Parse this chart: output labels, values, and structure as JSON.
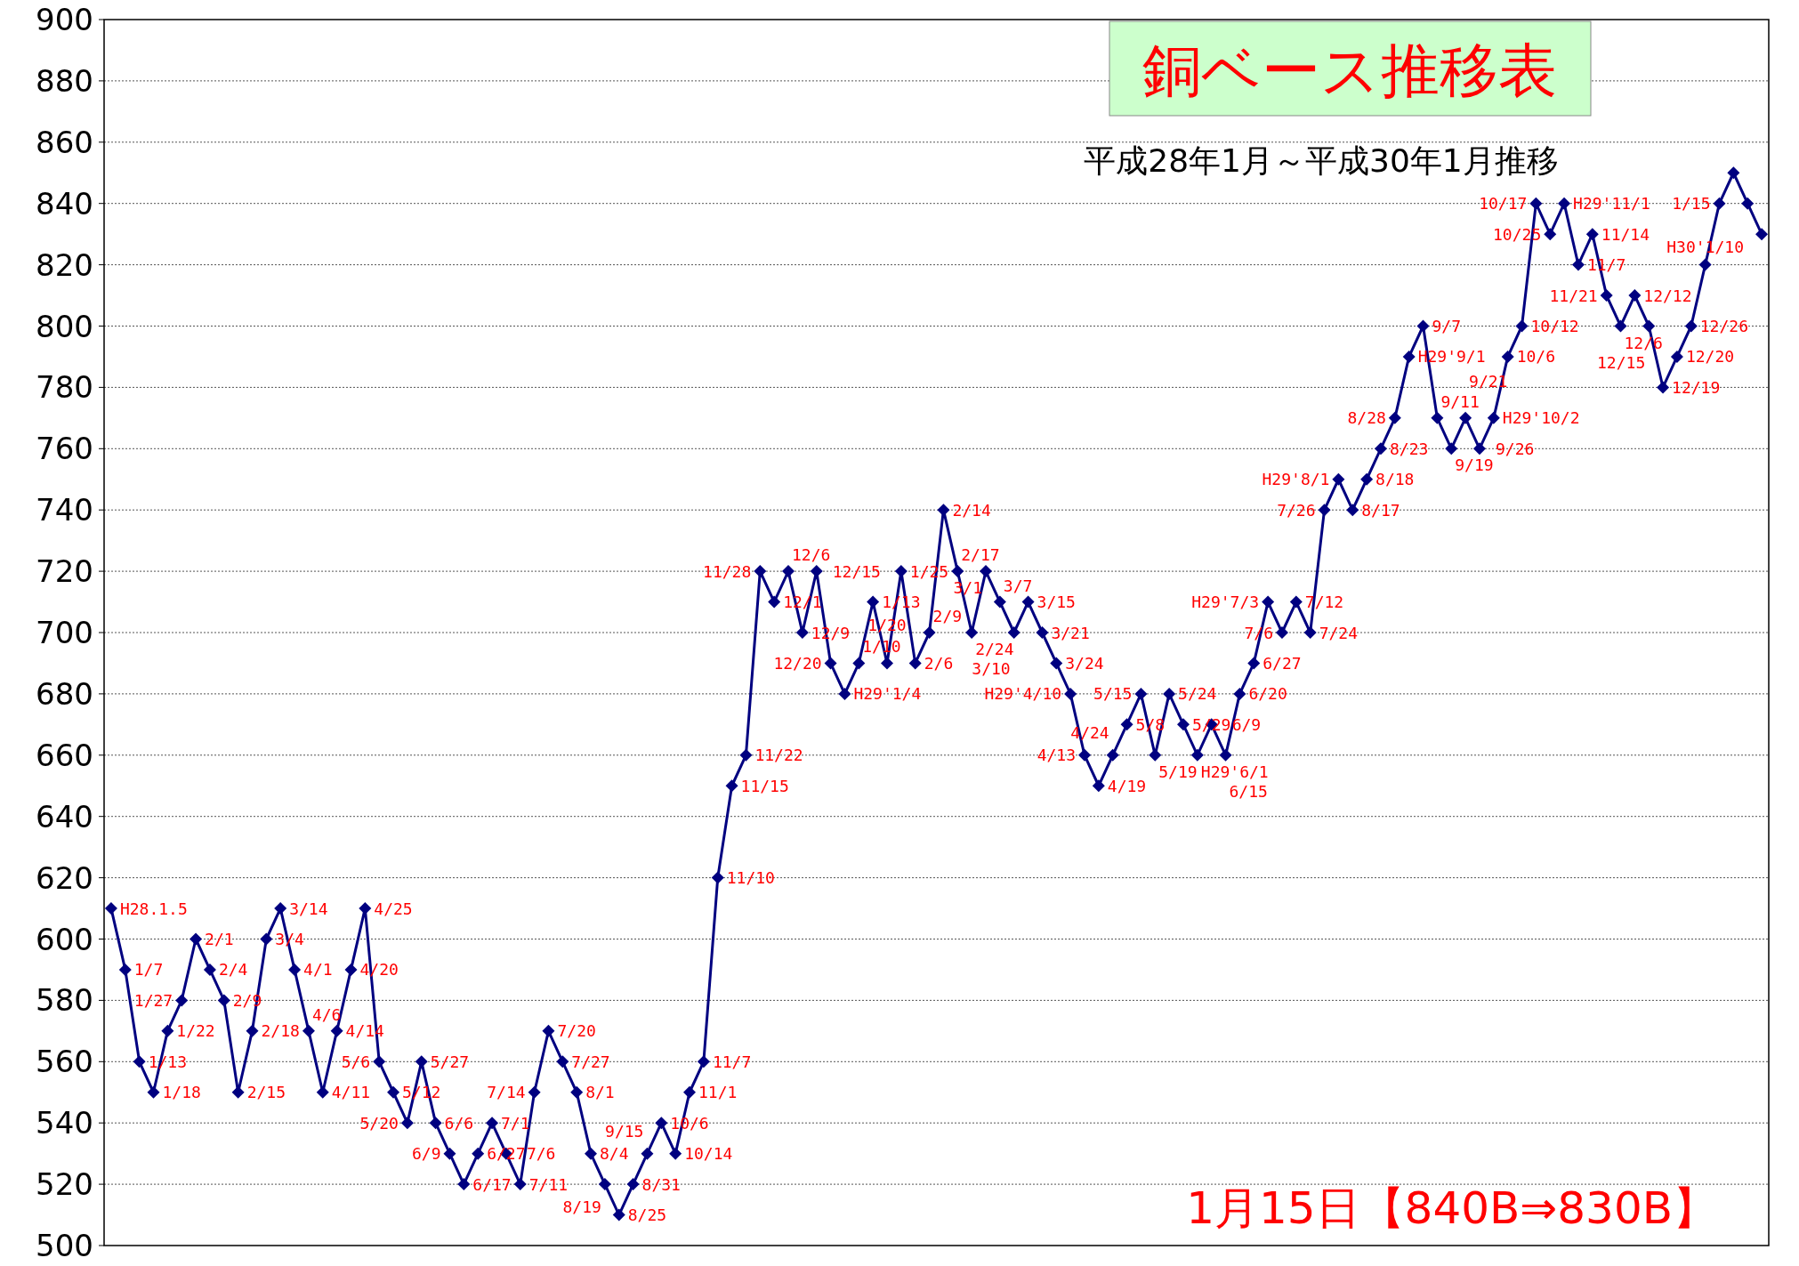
{
  "chart_data": {
    "type": "line",
    "title": "銅ベース推移表",
    "subtitle": "平成28年1月～平成30年1月推移",
    "categories": [
      null,
      null,
      null,
      null,
      null,
      null,
      null,
      null,
      null,
      null,
      null,
      null,
      null,
      null,
      null,
      null,
      null,
      null,
      null,
      null,
      null,
      null,
      null,
      null,
      null,
      null,
      null,
      null,
      null,
      null,
      null,
      null,
      null,
      null,
      null,
      null,
      null,
      null,
      null,
      null,
      null,
      null,
      null,
      null,
      null,
      null,
      null,
      null,
      null,
      null,
      null,
      null,
      null,
      null,
      null,
      null,
      null,
      null,
      null,
      null,
      null,
      null,
      null,
      null,
      null,
      null,
      null,
      null,
      null,
      null,
      null,
      null,
      null,
      null,
      null,
      null,
      null,
      null,
      null,
      null,
      null,
      null,
      null,
      null,
      null,
      null,
      null,
      null,
      null,
      null,
      null,
      null,
      null,
      null,
      null,
      null,
      null,
      null,
      null,
      null,
      null,
      null,
      null,
      null,
      null,
      null,
      null,
      null,
      null,
      null,
      null,
      null,
      null,
      null,
      null,
      null,
      null,
      null
    ],
    "series": [
      {
        "color": "#000080",
        "values": [
          610,
          590,
          560,
          550,
          570,
          580,
          600,
          590,
          580,
          550,
          570,
          600,
          610,
          590,
          570,
          550,
          570,
          590,
          610,
          560,
          550,
          540,
          560,
          540,
          530,
          520,
          530,
          540,
          530,
          520,
          550,
          570,
          560,
          550,
          530,
          520,
          510,
          520,
          530,
          540,
          530,
          550,
          560,
          620,
          650,
          660,
          720,
          710,
          720,
          700,
          720,
          690,
          680,
          690,
          710,
          690,
          720,
          690,
          700,
          740,
          720,
          700,
          720,
          710,
          700,
          710,
          700,
          690,
          680,
          660,
          650,
          660,
          670,
          680,
          660,
          680,
          670,
          660,
          670,
          660,
          680,
          690,
          710,
          700,
          710,
          700,
          740,
          750,
          740,
          750,
          760,
          770,
          790,
          800,
          770,
          760,
          770,
          760,
          770,
          790,
          800,
          840,
          830,
          840,
          820,
          830,
          810,
          800,
          810,
          800,
          780,
          790,
          800,
          820,
          840,
          850,
          840,
          830
        ]
      }
    ],
    "ylim": [
      500,
      900
    ],
    "yticks": [
      500,
      520,
      540,
      560,
      580,
      600,
      620,
      640,
      660,
      680,
      700,
      720,
      740,
      760,
      780,
      800,
      820,
      840,
      860,
      880,
      900
    ],
    "tick_labels": "y",
    "grid": "y",
    "marker": "diamond",
    "annotations": [
      "1月15日【840B⇒830B】",
      "H28.1.5",
      "1/7",
      "1/13",
      "1/18",
      "1/22",
      "1/27",
      "2/1",
      "2/4",
      "2/9",
      "2/15",
      "2/18",
      "3/4",
      "3/14",
      "4/1",
      "4/6",
      "4/11",
      "4/14",
      "4/20",
      "4/25",
      "5/6",
      "5/12",
      "5/20",
      "5/27",
      "6/6",
      "6/9",
      "6/17",
      "6/27",
      "7/1",
      "7/6",
      "7/11",
      "7/14",
      "7/20",
      "7/27",
      "8/1",
      "8/4",
      "8/19",
      "8/25",
      "8/31",
      "9/15",
      "10/6",
      "10/14",
      "11/1",
      "11/7",
      "11/10",
      "11/15",
      "11/22",
      "11/28",
      "12/1",
      "12/6",
      "12/9",
      "12/15",
      "12/20",
      "H29'1/4",
      "1/10",
      "1/13",
      "1/20",
      "1/25",
      "2/6",
      "2/9",
      "2/14",
      "2/17",
      "2/24",
      "3/1",
      "3/7",
      "3/10",
      "3/15",
      "3/21",
      "3/24",
      "H29'4/10",
      "4/13",
      "4/19",
      "4/24",
      "5/8",
      "5/15",
      "5/19",
      "5/24",
      "5/29",
      "H29'6/1",
      "6/9",
      "6/15",
      "6/20",
      "6/27",
      "H29'7/3",
      "7/6",
      "7/12",
      "7/24",
      "7/26",
      "H29'8/1",
      "8/17",
      "8/18",
      "8/23",
      "8/28",
      "H29'9/1",
      "9/7",
      "9/11",
      "9/19",
      "9/21",
      "9/26",
      "H29'10/2",
      "10/6",
      "10/12",
      "10/17",
      "10/25",
      "H29'11/1",
      "11/7",
      "11/14",
      "11/21",
      "12/6",
      "12/12",
      "12/15",
      "12/19",
      "12/20",
      "12/26",
      "H30'1/10",
      "1/15"
    ]
  }
}
